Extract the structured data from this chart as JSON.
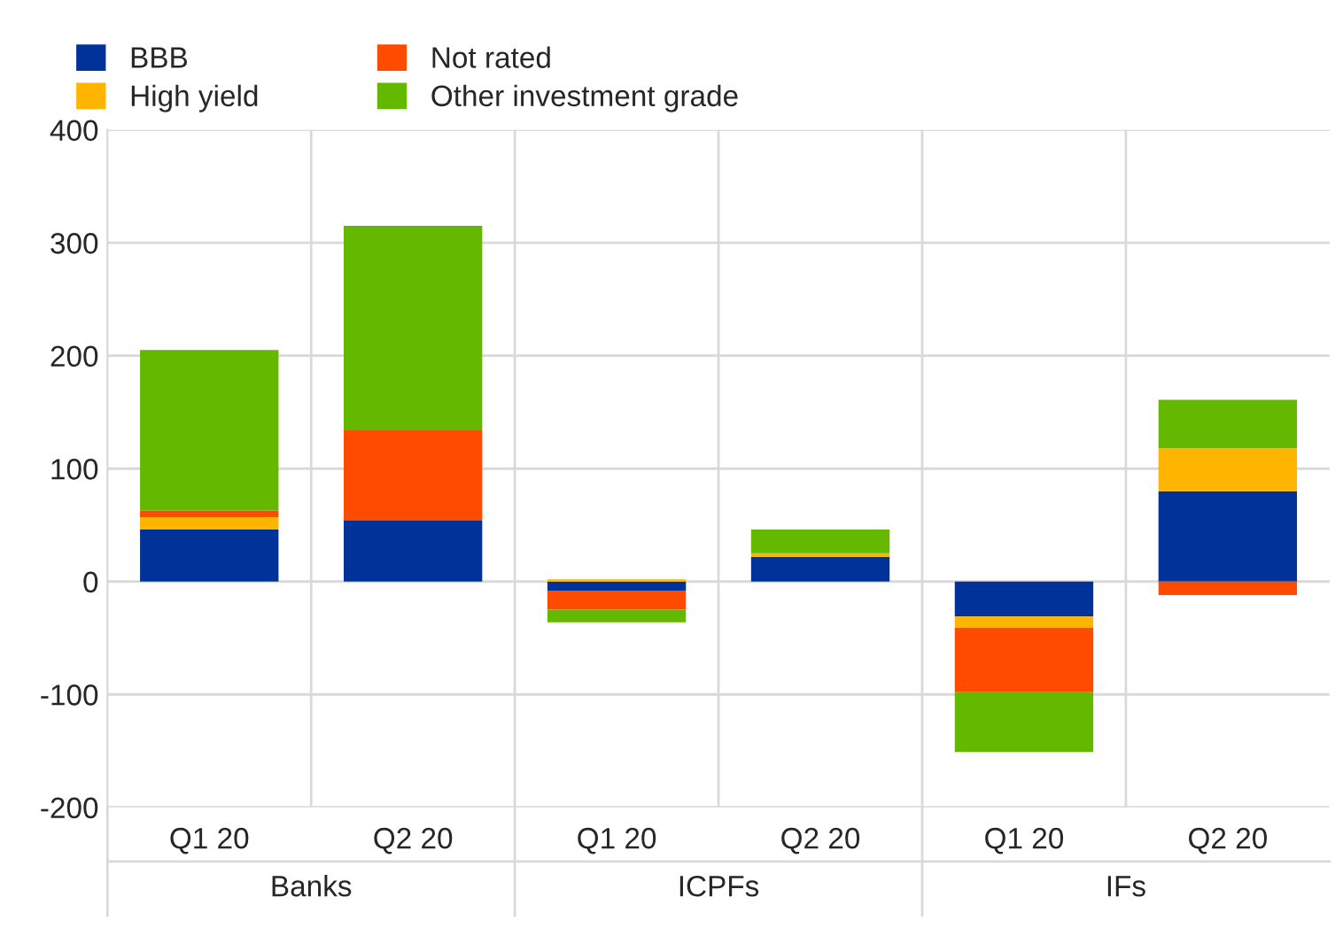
{
  "chart_data": {
    "type": "bar",
    "stacked": true,
    "categories": [
      "Q1 20",
      "Q2 20",
      "Q1 20",
      "Q2 20",
      "Q1 20",
      "Q2 20"
    ],
    "series": [
      {
        "name": "BBB",
        "color": "#003299",
        "values": [
          46,
          54,
          -8,
          22,
          -31,
          80
        ]
      },
      {
        "name": "High yield",
        "color": "#ffb400",
        "values": [
          11,
          0,
          2,
          3,
          -10,
          38
        ]
      },
      {
        "name": "Not rated",
        "color": "#ff4b00",
        "values": [
          6,
          80,
          -17,
          0,
          -57,
          -12
        ]
      },
      {
        "name": "Other investment grade",
        "color": "#65b800",
        "values": [
          142,
          181,
          -11,
          21,
          -53,
          43
        ]
      }
    ],
    "annotations": [
      "Banks",
      "ICPFs",
      "IFs"
    ],
    "ylim": [
      -200,
      400
    ],
    "yticks": [
      -200,
      -100,
      0,
      100,
      200,
      300,
      400
    ],
    "grid": "y",
    "legend": "top left"
  }
}
